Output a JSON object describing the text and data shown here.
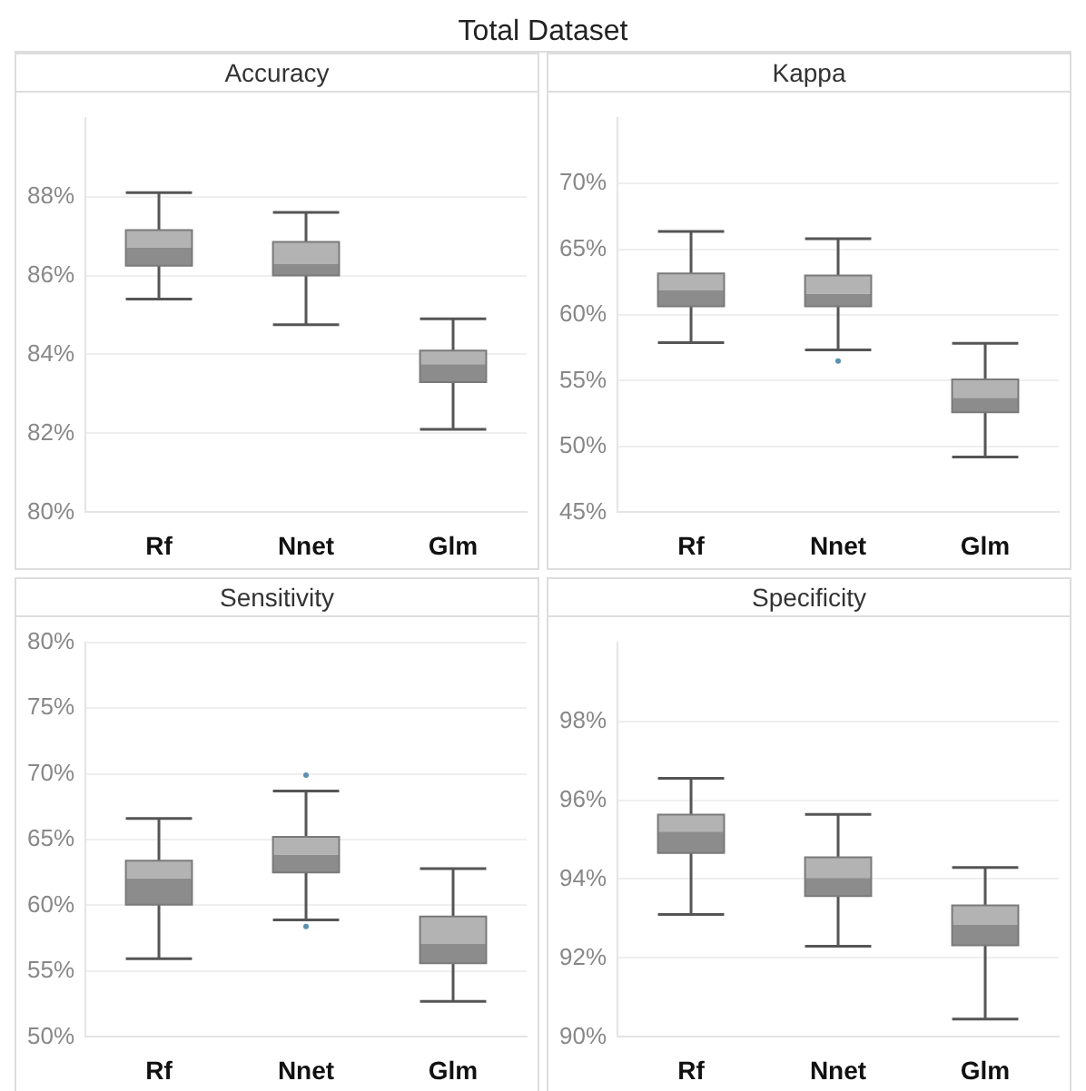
{
  "chart_data": [
    {
      "type": "box",
      "title": "Accuracy",
      "annotations": [
        "Total Dataset"
      ],
      "categories": [
        "Rf",
        "Nnet",
        "Glm"
      ],
      "color": "#8c8c8c",
      "grid": "y",
      "ylim": [
        80,
        90
      ],
      "yticks": [
        {
          "value": 80,
          "label": "80%"
        },
        {
          "value": 82,
          "label": "82%"
        },
        {
          "value": 84,
          "label": "84%"
        },
        {
          "value": 86,
          "label": "86%"
        },
        {
          "value": 88,
          "label": "88%"
        }
      ],
      "boxes": [
        {
          "low": 85.4,
          "q1": 86.25,
          "median": 86.7,
          "q3": 87.15,
          "high": 88.1
        },
        {
          "low": 84.75,
          "q1": 86.0,
          "median": 86.3,
          "q3": 86.85,
          "high": 87.6
        },
        {
          "low": 82.1,
          "q1": 83.3,
          "median": 83.75,
          "q3": 84.1,
          "high": 84.9
        }
      ]
    },
    {
      "type": "box",
      "title": "Kappa",
      "categories": [
        "Rf",
        "Nnet",
        "Glm"
      ],
      "color": "#8c8c8c",
      "grid": "y",
      "ylim": [
        45,
        75
      ],
      "yticks": [
        {
          "value": 45,
          "label": "45%"
        },
        {
          "value": 50,
          "label": "50%"
        },
        {
          "value": 55,
          "label": "55%"
        },
        {
          "value": 60,
          "label": "60%"
        },
        {
          "value": 65,
          "label": "65%"
        },
        {
          "value": 70,
          "label": "70%"
        }
      ],
      "boxes": [
        {
          "low": 57.9,
          "q1": 60.65,
          "median": 61.9,
          "q3": 63.15,
          "high": 66.35
        },
        {
          "low": 57.35,
          "q1": 60.65,
          "median": 61.6,
          "q3": 63.0,
          "high": 65.8,
          "outliers": [
            56.5
          ]
        },
        {
          "low": 49.2,
          "q1": 52.6,
          "median": 53.7,
          "q3": 55.1,
          "high": 57.85
        }
      ]
    },
    {
      "type": "box",
      "title": "Sensitivity",
      "categories": [
        "Rf",
        "Nnet",
        "Glm"
      ],
      "color": "#8c8c8c",
      "grid": "y",
      "ylim": [
        50,
        80
      ],
      "yticks": [
        {
          "value": 50,
          "label": "50%"
        },
        {
          "value": 55,
          "label": "55%"
        },
        {
          "value": 60,
          "label": "60%"
        },
        {
          "value": 65,
          "label": "65%"
        },
        {
          "value": 70,
          "label": "70%"
        },
        {
          "value": 75,
          "label": "75%"
        },
        {
          "value": 80,
          "label": "80%"
        }
      ],
      "boxes": [
        {
          "low": 55.95,
          "q1": 60.05,
          "median": 62.05,
          "q3": 63.4,
          "high": 66.6
        },
        {
          "low": 58.9,
          "q1": 62.5,
          "median": 63.85,
          "q3": 65.2,
          "high": 68.7,
          "outliers": [
            69.9,
            58.4
          ]
        },
        {
          "low": 52.7,
          "q1": 55.6,
          "median": 57.1,
          "q3": 59.15,
          "high": 62.8
        }
      ]
    },
    {
      "type": "box",
      "title": "Specificity",
      "categories": [
        "Rf",
        "Nnet",
        "Glm"
      ],
      "color": "#8c8c8c",
      "grid": "y",
      "ylim": [
        90,
        100
      ],
      "yticks": [
        {
          "value": 90,
          "label": "90%"
        },
        {
          "value": 92,
          "label": "92%"
        },
        {
          "value": 94,
          "label": "94%"
        },
        {
          "value": 96,
          "label": "96%"
        },
        {
          "value": 98,
          "label": "98%"
        }
      ],
      "boxes": [
        {
          "low": 93.1,
          "q1": 94.66,
          "median": 95.2,
          "q3": 95.63,
          "high": 96.55
        },
        {
          "low": 92.3,
          "q1": 93.57,
          "median": 94.03,
          "q3": 94.55,
          "high": 95.64
        },
        {
          "low": 90.45,
          "q1": 92.32,
          "median": 92.85,
          "q3": 93.33,
          "high": 94.29
        }
      ]
    }
  ]
}
